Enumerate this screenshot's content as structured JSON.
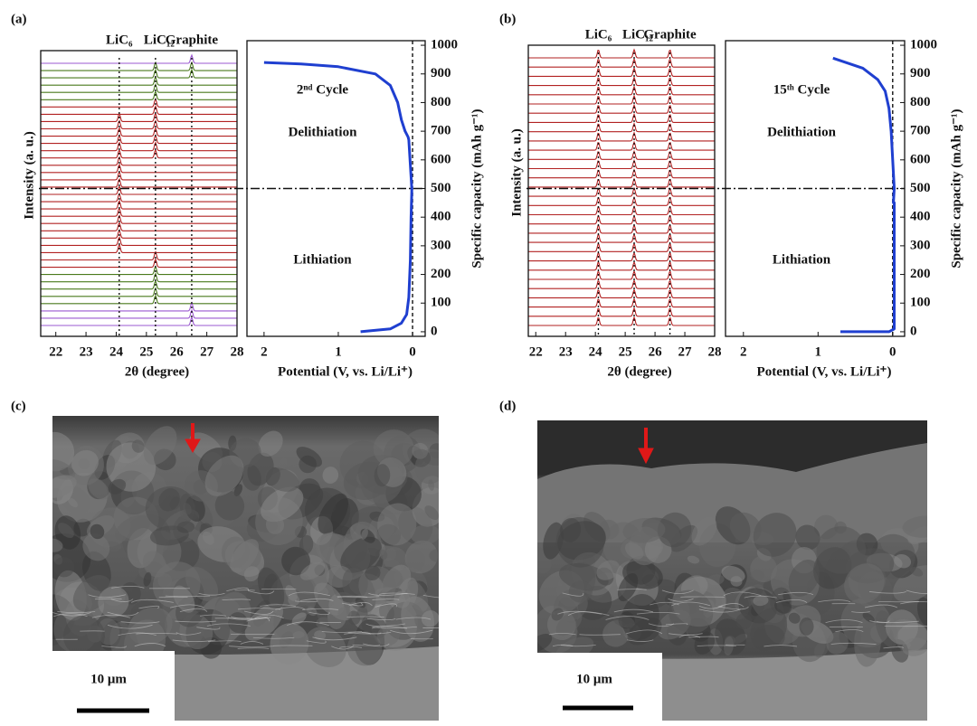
{
  "panel_labels": [
    "(a)",
    "(b)",
    "(c)",
    "(d)"
  ],
  "chart_data": [
    {
      "type": "waterfall",
      "xlabel": "2θ (degree)",
      "ylabel": "Intensity (a. u.)",
      "xlim": [
        21.5,
        28
      ],
      "xticks": [
        22,
        23,
        24,
        25,
        26,
        27,
        28
      ],
      "peak_positions": [
        24.1,
        25.3,
        26.5
      ],
      "peak_labels": [
        "LiC₆",
        "LiC₁₂",
        "Graphite"
      ],
      "traces": [
        {
          "color": "#9b59d0",
          "peaks": [
            26.5
          ]
        },
        {
          "color": "#4a7a1c",
          "peaks": [
            25.3,
            26.5
          ]
        },
        {
          "color": "#4a7a1c",
          "peaks": [
            25.3,
            26.5
          ]
        },
        {
          "color": "#4a7a1c",
          "peaks": [
            25.3
          ]
        },
        {
          "color": "#4a7a1c",
          "peaks": [
            25.3
          ]
        },
        {
          "color": "#4a7a1c",
          "peaks": [
            25.3
          ]
        },
        {
          "color": "#b22222",
          "peaks": [
            25.3
          ]
        },
        {
          "color": "#b22222",
          "peaks": [
            25.3
          ]
        },
        {
          "color": "#b22222",
          "peaks": [
            24.1,
            25.3
          ]
        },
        {
          "color": "#b22222",
          "peaks": [
            24.1,
            25.3
          ]
        },
        {
          "color": "#b22222",
          "peaks": [
            24.1,
            25.3
          ]
        },
        {
          "color": "#b22222",
          "peaks": [
            24.1,
            25.3
          ]
        },
        {
          "color": "#b22222",
          "peaks": [
            24.1,
            25.3
          ]
        },
        {
          "color": "#b22222",
          "peaks": [
            24.1,
            25.3
          ]
        },
        {
          "color": "#b22222",
          "peaks": [
            24.1
          ]
        },
        {
          "color": "#b22222",
          "peaks": [
            24.1
          ]
        },
        {
          "color": "#b22222",
          "peaks": [
            24.1
          ]
        },
        {
          "color": "#b22222",
          "peaks": [
            24.1
          ]
        },
        {
          "color": "#b22222",
          "peaks": [
            24.1
          ]
        },
        {
          "color": "#b22222",
          "peaks": [
            24.1
          ]
        },
        {
          "color": "#b22222",
          "peaks": [
            24.1
          ]
        },
        {
          "color": "#b22222",
          "peaks": [
            24.1
          ]
        },
        {
          "color": "#b22222",
          "peaks": [
            24.1
          ]
        },
        {
          "color": "#b22222",
          "peaks": [
            24.1
          ]
        },
        {
          "color": "#b22222",
          "peaks": [
            24.1
          ]
        },
        {
          "color": "#b22222",
          "peaks": [
            24.1
          ]
        },
        {
          "color": "#b22222",
          "peaks": [
            24.1
          ]
        },
        {
          "color": "#b22222",
          "peaks": [
            25.3
          ]
        },
        {
          "color": "#b22222",
          "peaks": [
            25.3
          ]
        },
        {
          "color": "#4a7a1c",
          "peaks": [
            25.3
          ]
        },
        {
          "color": "#4a7a1c",
          "peaks": [
            25.3
          ]
        },
        {
          "color": "#4a7a1c",
          "peaks": [
            25.3
          ]
        },
        {
          "color": "#4a7a1c",
          "peaks": [
            25.3
          ]
        },
        {
          "color": "#4a7a1c",
          "peaks": [
            25.3
          ]
        },
        {
          "color": "#9b59d0",
          "peaks": [
            26.5
          ]
        },
        {
          "color": "#9b59d0",
          "peaks": [
            26.5
          ]
        },
        {
          "color": "#9b59d0",
          "peaks": [
            26.5
          ]
        }
      ]
    },
    {
      "type": "line",
      "xlabel": "Potential (V, vs. Li/Li⁺)",
      "ylabel": "Specific capacity (mAh g⁻¹)",
      "xlim": [
        2.23,
        -0.17
      ],
      "xticks": [
        2,
        1,
        0
      ],
      "ylim": [
        -16,
        1016
      ],
      "yticks": [
        0,
        100,
        200,
        300,
        400,
        500,
        600,
        700,
        800,
        900,
        1000
      ],
      "vline": 0,
      "hline": 500,
      "annotations": [
        "2ⁿᵈ Cycle",
        "Delithiation",
        "Lithiation"
      ],
      "series": [
        {
          "color": "#1f3fd0",
          "x": [
            0.7,
            0.3,
            0.15,
            0.08,
            0.05,
            0.03,
            0.02,
            0.01,
            0.01,
            0.05,
            0.06,
            0.1,
            0.15,
            0.2,
            0.3,
            0.5,
            1.0,
            1.5,
            2.0
          ],
          "values": [
            0,
            10,
            30,
            60,
            120,
            250,
            400,
            490,
            500,
            670,
            680,
            700,
            740,
            800,
            860,
            900,
            925,
            935,
            940
          ]
        }
      ]
    },
    {
      "type": "waterfall",
      "xlabel": "2θ (degree)",
      "ylabel": "Intensity (a. u.)",
      "xlim": [
        21.75,
        28
      ],
      "xticks": [
        22,
        23,
        24,
        25,
        26,
        27,
        28
      ],
      "peak_positions": [
        24.1,
        25.3,
        26.5
      ],
      "peak_labels": [
        "LiC₆",
        "LiC₁₂",
        "Graphite"
      ],
      "traces": [
        {
          "color": "#b22222",
          "peaks": [
            24.1,
            25.3,
            26.5
          ]
        },
        {
          "color": "#b22222",
          "peaks": [
            24.1,
            25.3,
            26.5
          ]
        },
        {
          "color": "#b22222",
          "peaks": [
            24.1,
            25.3,
            26.5
          ]
        },
        {
          "color": "#b22222",
          "peaks": [
            24.1,
            25.3,
            26.5
          ]
        },
        {
          "color": "#b22222",
          "peaks": [
            24.1,
            25.3,
            26.5
          ]
        },
        {
          "color": "#b22222",
          "peaks": [
            24.1,
            25.3,
            26.5
          ]
        },
        {
          "color": "#b22222",
          "peaks": [
            24.1,
            25.3,
            26.5
          ]
        },
        {
          "color": "#b22222",
          "peaks": [
            24.1,
            25.3,
            26.5
          ]
        },
        {
          "color": "#b22222",
          "peaks": [
            24.1,
            25.3,
            26.5
          ]
        },
        {
          "color": "#b22222",
          "peaks": [
            24.1,
            25.3,
            26.5
          ]
        },
        {
          "color": "#b22222",
          "peaks": [
            24.1,
            25.3,
            26.5
          ]
        },
        {
          "color": "#b22222",
          "peaks": [
            24.1,
            25.3,
            26.5
          ]
        },
        {
          "color": "#b22222",
          "peaks": [
            24.1,
            25.3,
            26.5
          ]
        },
        {
          "color": "#b22222",
          "peaks": [
            24.1,
            25.3,
            26.5
          ]
        },
        {
          "color": "#b22222",
          "peaks": [
            24.1,
            25.3,
            26.5
          ]
        },
        {
          "color": "#b22222",
          "peaks": [
            24.1,
            25.3,
            26.5
          ]
        },
        {
          "color": "#b22222",
          "peaks": [
            24.1,
            25.3,
            26.5
          ]
        },
        {
          "color": "#b22222",
          "peaks": [
            24.1,
            25.3,
            26.5
          ]
        },
        {
          "color": "#b22222",
          "peaks": [
            24.1,
            25.3,
            26.5
          ]
        },
        {
          "color": "#b22222",
          "peaks": [
            24.1,
            25.3,
            26.5
          ]
        },
        {
          "color": "#b22222",
          "peaks": [
            24.1,
            25.3,
            26.5
          ]
        },
        {
          "color": "#b22222",
          "peaks": [
            24.1,
            25.3,
            26.5
          ]
        },
        {
          "color": "#b22222",
          "peaks": [
            24.1,
            25.3,
            26.5
          ]
        },
        {
          "color": "#b22222",
          "peaks": [
            24.1,
            25.3,
            26.5
          ]
        },
        {
          "color": "#b22222",
          "peaks": [
            24.1,
            25.3,
            26.5
          ]
        },
        {
          "color": "#b22222",
          "peaks": [
            24.1,
            25.3,
            26.5
          ]
        },
        {
          "color": "#b22222",
          "peaks": [
            24.1,
            25.3,
            26.5
          ]
        },
        {
          "color": "#b22222",
          "peaks": [
            24.1,
            25.3,
            26.5
          ]
        },
        {
          "color": "#b22222",
          "peaks": [
            24.1,
            25.3,
            26.5
          ]
        },
        {
          "color": "#b22222",
          "peaks": [
            24.1,
            25.3,
            26.5
          ]
        }
      ]
    },
    {
      "type": "line",
      "xlabel": "Potential (V, vs. Li/Li⁺)",
      "ylabel": "Specific capacity (mAh g⁻¹)",
      "xlim": [
        2.24,
        -0.16
      ],
      "xticks": [
        2,
        1,
        0
      ],
      "ylim": [
        -16,
        1016
      ],
      "yticks": [
        0,
        100,
        200,
        300,
        400,
        500,
        600,
        700,
        800,
        900,
        1000
      ],
      "vline": 0,
      "hline": 500,
      "annotations": [
        "15ᵗʰ Cycle",
        "Delithiation",
        "Lithiation"
      ],
      "series": [
        {
          "color": "#1f3fd0",
          "x": [
            0.7,
            0.05,
            -0.02,
            -0.02,
            -0.01,
            -0.02,
            0.0,
            0.02,
            0.05,
            0.1,
            0.2,
            0.4,
            0.8
          ],
          "values": [
            0,
            0,
            10,
            450,
            450,
            500,
            600,
            700,
            780,
            840,
            880,
            920,
            955
          ]
        }
      ]
    }
  ],
  "images": [
    {
      "scale_label": "10 μm"
    },
    {
      "scale_label": "10 μm"
    }
  ]
}
